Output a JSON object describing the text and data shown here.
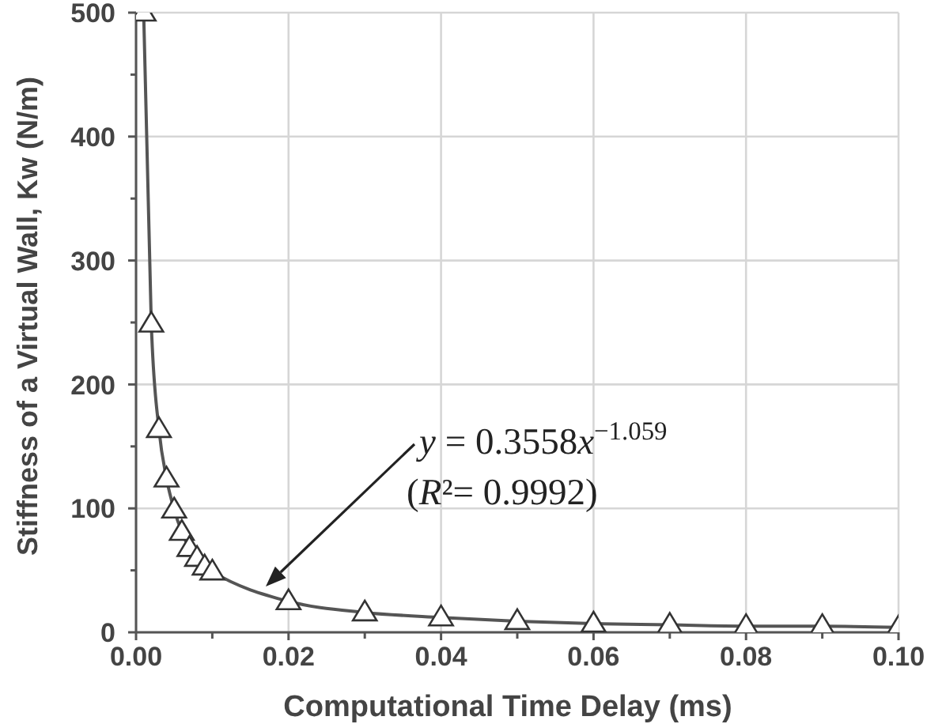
{
  "chart_data": {
    "type": "line",
    "xlabel": "Computational Time Delay (ms)",
    "ylabel": "Stiffness of a Virtual Wall, Kw (N/m)",
    "x": [
      0.001,
      0.002,
      0.003,
      0.004,
      0.005,
      0.006,
      0.007,
      0.008,
      0.009,
      0.01,
      0.02,
      0.03,
      0.04,
      0.05,
      0.06,
      0.07,
      0.08,
      0.09,
      0.1
    ],
    "series": [
      {
        "color": "#555555",
        "values": [
          500,
          249,
          164,
          124,
          99,
          81,
          68,
          60,
          53,
          49,
          25,
          16,
          12,
          9,
          7,
          6,
          5,
          5,
          4
        ]
      }
    ],
    "xlim": [
      0,
      0.1
    ],
    "ylim": [
      0,
      500
    ],
    "xticks": [
      {
        "value": 0,
        "label": "0.00"
      },
      {
        "value": 0.01,
        "label": null
      },
      {
        "value": 0.02,
        "label": "0.02"
      },
      {
        "value": 0.03,
        "label": null
      },
      {
        "value": 0.04,
        "label": "0.04"
      },
      {
        "value": 0.05,
        "label": null
      },
      {
        "value": 0.06,
        "label": "0.06"
      },
      {
        "value": 0.07,
        "label": null
      },
      {
        "value": 0.08,
        "label": "0.08"
      },
      {
        "value": 0.09,
        "label": null
      },
      {
        "value": 0.1,
        "label": "0.10"
      }
    ],
    "yticks": [
      0,
      {
        "value": 50,
        "label": null
      },
      100,
      {
        "value": 150,
        "label": null
      },
      200,
      {
        "value": 250,
        "label": null
      },
      300,
      {
        "value": 350,
        "label": null
      },
      400,
      {
        "value": 450,
        "label": null
      },
      500
    ],
    "grid": true,
    "marker": "triangle",
    "line_style": "solid",
    "annotations": [
      "y = 0.3558x$^{−1.059}$",
      "(R²= 0.9992)"
    ]
  }
}
